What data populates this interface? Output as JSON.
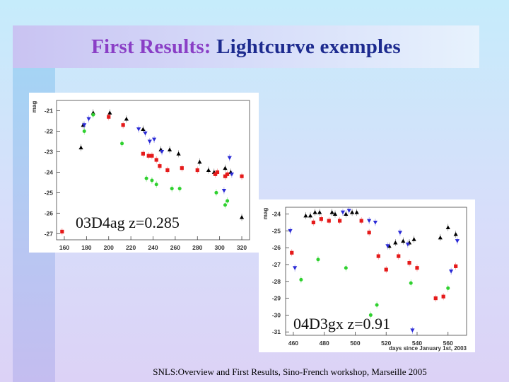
{
  "slide": {
    "title_part1": "First Results:",
    "title_part2": "Lightcurve exemples",
    "footer": "SNLS:Overview and First Results, Sino-French workshop, Marseille 2005"
  },
  "colors": {
    "band_black": "#000000",
    "band_blue": "#2b2bd6",
    "band_green": "#2fd12f",
    "band_red": "#e51a1a"
  },
  "chart_data": [
    {
      "type": "scatter",
      "label": "03D4ag z=0.285",
      "xlabel": "",
      "ylabel": "mag",
      "xlim": [
        153,
        327
      ],
      "ylim": [
        -20.5,
        -27.3
      ],
      "xticks": [
        160,
        180,
        200,
        220,
        240,
        260,
        280,
        300,
        320
      ],
      "yticks": [
        -21,
        -22,
        -23,
        -24,
        -25,
        -26,
        -27
      ],
      "series": [
        {
          "color": "#000000",
          "marker": "triangle-up",
          "points": [
            [
              175,
              -22.8
            ],
            [
              177,
              -21.7
            ],
            [
              186,
              -21.1
            ],
            [
              201,
              -21.1
            ],
            [
              216,
              -21.4
            ],
            [
              231,
              -21.9
            ],
            [
              247,
              -22.9
            ],
            [
              255,
              -22.9
            ],
            [
              263,
              -23.1
            ],
            [
              282,
              -23.5
            ],
            [
              290,
              -23.9
            ],
            [
              295,
              -24.0
            ],
            [
              305,
              -23.8
            ],
            [
              310,
              -24.0
            ],
            [
              320,
              -26.2
            ]
          ]
        },
        {
          "color": "#2b2bd6",
          "marker": "triangle-down",
          "points": [
            [
              178,
              -21.7
            ],
            [
              182,
              -21.4
            ],
            [
              227,
              -21.9
            ],
            [
              233,
              -22.1
            ],
            [
              237,
              -22.5
            ],
            [
              241,
              -22.4
            ],
            [
              248,
              -23.0
            ],
            [
              304,
              -24.9
            ],
            [
              309,
              -23.3
            ],
            [
              311,
              -24.1
            ]
          ]
        },
        {
          "color": "#2fd12f",
          "marker": "circle",
          "points": [
            [
              178,
              -22.0
            ],
            [
              186,
              -21.2
            ],
            [
              212,
              -22.6
            ],
            [
              234,
              -24.3
            ],
            [
              239,
              -24.4
            ],
            [
              243,
              -24.6
            ],
            [
              257,
              -24.8
            ],
            [
              264,
              -24.8
            ],
            [
              297,
              -25.0
            ],
            [
              305,
              -25.6
            ],
            [
              307,
              -25.4
            ]
          ]
        },
        {
          "color": "#e51a1a",
          "marker": "square",
          "points": [
            [
              158,
              -26.9
            ],
            [
              200,
              -21.3
            ],
            [
              213,
              -21.7
            ],
            [
              231,
              -23.1
            ],
            [
              236,
              -23.2
            ],
            [
              239,
              -23.2
            ],
            [
              243,
              -23.4
            ],
            [
              246,
              -23.7
            ],
            [
              253,
              -23.9
            ],
            [
              266,
              -23.8
            ],
            [
              280,
              -23.9
            ],
            [
              296,
              -24.1
            ],
            [
              298,
              -24.0
            ],
            [
              305,
              -24.2
            ],
            [
              307,
              -24.1
            ],
            [
              320,
              -24.2
            ]
          ]
        }
      ]
    },
    {
      "type": "scatter",
      "label": "04D3gx z=0.91",
      "xlabel": "days since January 1st, 2003",
      "ylabel": "mag",
      "xlim": [
        455,
        572
      ],
      "ylim": [
        -23.6,
        -31.2
      ],
      "xticks": [
        460,
        480,
        500,
        520,
        540,
        560
      ],
      "yticks": [
        -24,
        -25,
        -26,
        -27,
        -28,
        -29,
        -30,
        -31
      ],
      "series": [
        {
          "color": "#000000",
          "marker": "triangle-up",
          "points": [
            [
              468,
              -24.1
            ],
            [
              471,
              -24.1
            ],
            [
              474,
              -23.9
            ],
            [
              477,
              -23.9
            ],
            [
              485,
              -23.9
            ],
            [
              487,
              -24.0
            ],
            [
              494,
              -24.0
            ],
            [
              498,
              -23.9
            ],
            [
              501,
              -23.9
            ],
            [
              522,
              -25.9
            ],
            [
              526,
              -25.7
            ],
            [
              531,
              -25.6
            ],
            [
              535,
              -25.7
            ],
            [
              538,
              -25.5
            ],
            [
              555,
              -25.4
            ],
            [
              560,
              -24.8
            ],
            [
              565,
              -25.2
            ]
          ]
        },
        {
          "color": "#2b2bd6",
          "marker": "triangle-down",
          "points": [
            [
              458,
              -25.0
            ],
            [
              461,
              -27.2
            ],
            [
              492,
              -23.9
            ],
            [
              496,
              -23.8
            ],
            [
              509,
              -24.4
            ],
            [
              513,
              -24.5
            ],
            [
              521,
              -25.9
            ],
            [
              529,
              -25.1
            ],
            [
              534,
              -25.8
            ],
            [
              537,
              -30.9
            ],
            [
              562,
              -27.4
            ],
            [
              566,
              -25.6
            ]
          ]
        },
        {
          "color": "#2fd12f",
          "marker": "circle",
          "points": [
            [
              465,
              -27.9
            ],
            [
              476,
              -26.7
            ],
            [
              494,
              -27.2
            ],
            [
              510,
              -30.0
            ],
            [
              514,
              -29.4
            ],
            [
              536,
              -28.1
            ],
            [
              560,
              -28.4
            ]
          ]
        },
        {
          "color": "#e51a1a",
          "marker": "square",
          "points": [
            [
              459,
              -26.3
            ],
            [
              473,
              -24.5
            ],
            [
              478,
              -24.3
            ],
            [
              483,
              -24.4
            ],
            [
              490,
              -24.4
            ],
            [
              504,
              -24.4
            ],
            [
              509,
              -25.1
            ],
            [
              515,
              -26.5
            ],
            [
              520,
              -27.3
            ],
            [
              528,
              -26.5
            ],
            [
              535,
              -26.9
            ],
            [
              540,
              -27.2
            ],
            [
              552,
              -29.0
            ],
            [
              557,
              -28.9
            ],
            [
              565,
              -27.1
            ]
          ]
        }
      ]
    }
  ]
}
